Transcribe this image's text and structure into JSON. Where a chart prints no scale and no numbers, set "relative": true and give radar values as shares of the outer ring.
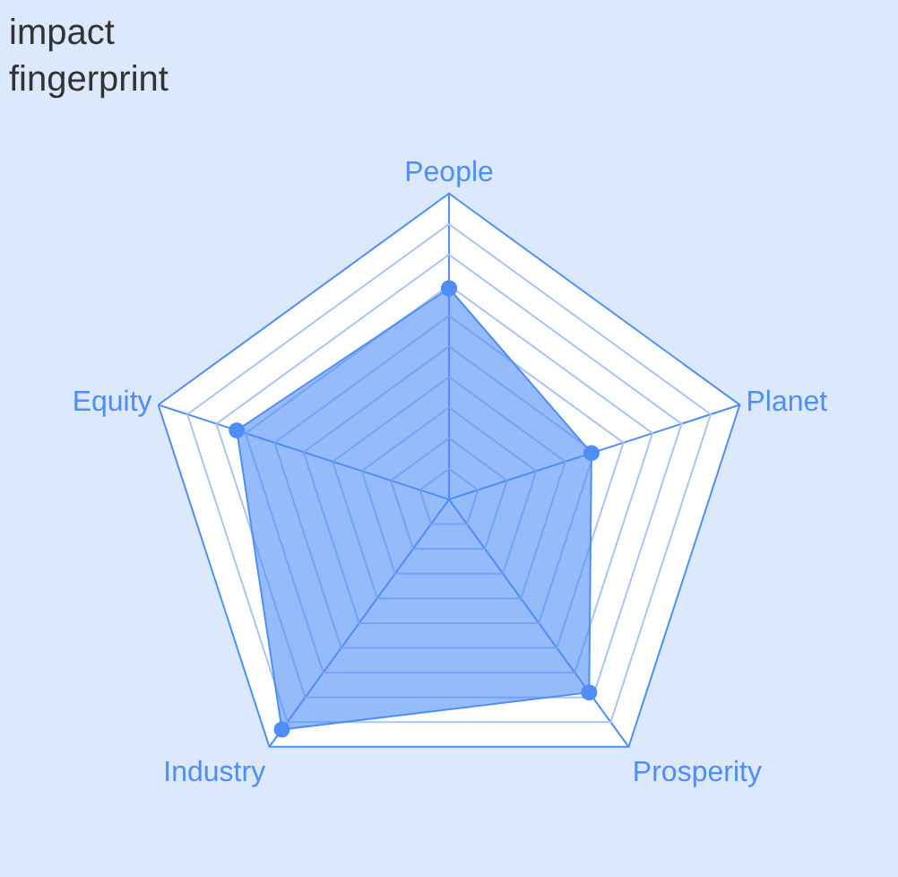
{
  "chart_data": {
    "type": "radar",
    "title": "impact\nfingerprint",
    "relative": true,
    "categories": [
      "People",
      "Planet",
      "Prosperity",
      "Industry",
      "Equity"
    ],
    "series": [
      {
        "color": "#4f8ef7",
        "values": [
          0.69,
          0.49,
          0.78,
          0.93,
          0.73
        ]
      }
    ],
    "marker": "circle"
  }
}
